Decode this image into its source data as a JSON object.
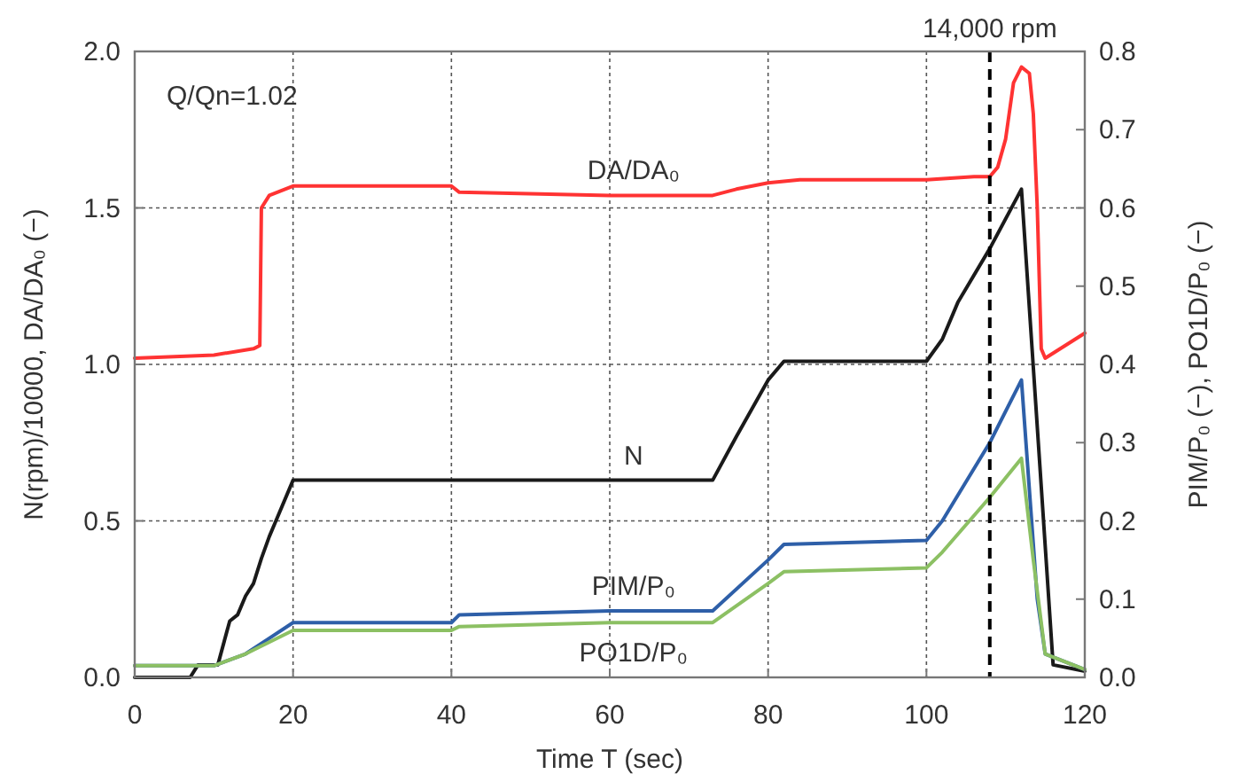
{
  "chart_data": {
    "type": "line",
    "xlabel": "Time T (sec)",
    "ylabel": "N(rpm)/10000,  DA/DA₀ (−)",
    "y2label": "PIM/P₀ (−),  PO1D/P₀ (−)",
    "annotations": [
      "Q/Qn=1.02"
    ],
    "xlim": [
      0,
      120
    ],
    "xticks": [
      0,
      20,
      40,
      60,
      80,
      100,
      120
    ],
    "ylim": [
      0,
      2
    ],
    "yticks": [
      {
        "value": 0,
        "label": "0.0"
      },
      {
        "value": 0.5,
        "label": "0.5"
      },
      {
        "value": 1,
        "label": "1.0"
      },
      {
        "value": 1.5,
        "label": "1.5"
      },
      {
        "value": 2,
        "label": "2.0"
      }
    ],
    "y2lim": [
      0,
      0.8
    ],
    "y2ticks": [
      {
        "value": 0,
        "label": "0.0"
      },
      0.1,
      0.2,
      0.3,
      0.4,
      0.5,
      0.6,
      0.7,
      0.8
    ],
    "grid": true,
    "marker": "none",
    "line_style": "solid",
    "ref_lines": [
      {
        "axis": "x",
        "value": 108,
        "label": "14,000 rpm",
        "color": "#000000",
        "line_style": "dashed"
      }
    ],
    "series": [
      {
        "name": "DA/DA₀",
        "color": "#ff3333",
        "x": [
          0,
          10,
          15,
          15.8,
          16,
          17,
          20,
          40,
          41,
          60,
          73,
          76,
          80,
          84,
          100,
          106,
          108,
          109,
          110,
          111,
          112,
          113,
          113.5,
          114,
          114.5,
          115,
          120
        ],
        "values": [
          1.02,
          1.03,
          1.05,
          1.06,
          1.5,
          1.54,
          1.57,
          1.57,
          1.55,
          1.54,
          1.54,
          1.56,
          1.58,
          1.59,
          1.59,
          1.6,
          1.6,
          1.63,
          1.72,
          1.9,
          1.95,
          1.93,
          1.8,
          1.5,
          1.05,
          1.02,
          1.1
        ]
      },
      {
        "name": "N",
        "color": "#1a1a1a",
        "x": [
          0,
          7,
          8,
          10.5,
          12,
          13,
          14,
          15,
          16,
          17,
          18,
          20,
          73,
          76,
          80,
          82,
          100,
          102,
          104,
          108,
          112,
          116,
          120
        ],
        "values": [
          0,
          0,
          0.04,
          0.04,
          0.18,
          0.2,
          0.26,
          0.3,
          0.38,
          0.45,
          0.51,
          0.63,
          0.63,
          0.77,
          0.95,
          1.01,
          1.01,
          1.08,
          1.2,
          1.37,
          1.56,
          0.04,
          0.02
        ]
      },
      {
        "name": "PIM/P₀",
        "color": "#2e5fa8",
        "axis": "y2",
        "x": [
          0,
          10,
          14,
          17,
          20,
          40,
          41,
          60,
          73,
          80,
          82,
          100,
          102,
          108,
          112,
          114,
          115,
          120
        ],
        "values": [
          0.015,
          0.015,
          0.03,
          0.05,
          0.07,
          0.07,
          0.08,
          0.085,
          0.085,
          0.15,
          0.17,
          0.175,
          0.2,
          0.3,
          0.38,
          0.1,
          0.03,
          0.01
        ]
      },
      {
        "name": "PO1D/P₀",
        "color": "#8cc063",
        "axis": "y2",
        "x": [
          0,
          10,
          14,
          17,
          20,
          40,
          41,
          60,
          73,
          80,
          82,
          100,
          102,
          108,
          112,
          113.5,
          115,
          120
        ],
        "values": [
          0.015,
          0.015,
          0.03,
          0.045,
          0.06,
          0.06,
          0.065,
          0.07,
          0.07,
          0.12,
          0.135,
          0.14,
          0.16,
          0.23,
          0.28,
          0.15,
          0.03,
          0.01
        ]
      }
    ]
  }
}
